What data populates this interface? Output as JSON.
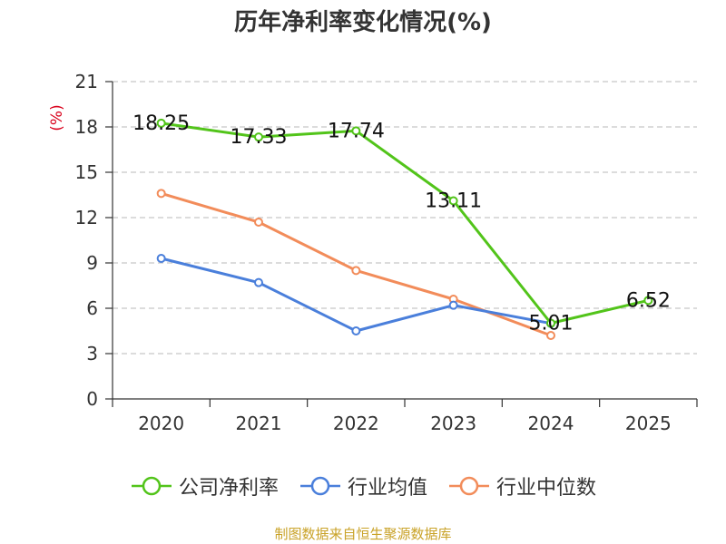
{
  "title": "历年净利率变化情况(%)",
  "source": "制图数据来自恒生聚源数据库",
  "chart_data": {
    "type": "line",
    "title": "历年净利率变化情况(%)",
    "xlabel": "",
    "ylabel": "(%)",
    "categories": [
      "2020",
      "2021",
      "2022",
      "2023",
      "2024",
      "2025"
    ],
    "yticks": [
      "0",
      "3",
      "6",
      "9",
      "12",
      "15",
      "18",
      "21"
    ],
    "ylim": [
      0,
      21
    ],
    "grid": true,
    "legend_position": "bottom",
    "series": [
      {
        "name": "公司净利率",
        "color": "#52c41a",
        "values": [
          18.25,
          17.33,
          17.74,
          13.11,
          5.01,
          6.52
        ],
        "labels": [
          "18.25",
          "17.33",
          "17.74",
          "13.11",
          "5.01",
          "6.52"
        ]
      },
      {
        "name": "行业均值",
        "color": "#4a7fdb",
        "values": [
          9.3,
          7.7,
          4.5,
          6.2,
          5.0,
          null
        ],
        "labels": []
      },
      {
        "name": "行业中位数",
        "color": "#f28c5a",
        "values": [
          13.6,
          11.7,
          8.5,
          6.6,
          4.2,
          null
        ],
        "labels": []
      }
    ]
  }
}
